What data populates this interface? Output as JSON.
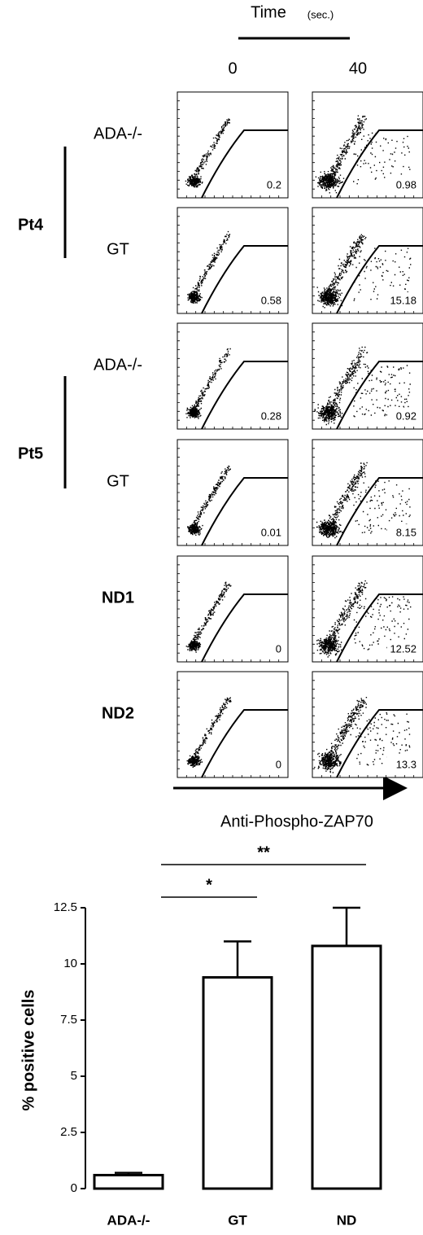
{
  "flow": {
    "time_label": "Time",
    "time_unit": "(sec.)",
    "timepoints": [
      "0",
      "40"
    ],
    "groups": [
      {
        "label": "Pt4"
      },
      {
        "label": "Pt5"
      }
    ],
    "rows": [
      {
        "label": "ADA-/-",
        "values": [
          0.2,
          0.98
        ]
      },
      {
        "label": "GT",
        "values": [
          0.58,
          15.18
        ]
      },
      {
        "label": "ADA-/-",
        "values": [
          0.28,
          0.92
        ]
      },
      {
        "label": "GT",
        "values": [
          0.01,
          8.15
        ]
      },
      {
        "label": "ND1",
        "values": [
          0,
          12.52
        ]
      },
      {
        "label": "ND2",
        "values": [
          0,
          13.3
        ]
      }
    ],
    "x_axis_label": "Anti-Phospho-ZAP70"
  },
  "chart_data": {
    "type": "bar",
    "y_label": "% positive cells",
    "categories": [
      "ADA-/-",
      "GT",
      "ND"
    ],
    "values": [
      0.6,
      9.4,
      10.8
    ],
    "errors": [
      0.1,
      1.6,
      1.7
    ],
    "color": "#ffffff",
    "ylim": [
      0,
      12.5
    ],
    "yticks": [
      0,
      2.5,
      5,
      7.5,
      10,
      12.5
    ],
    "annotations": [
      {
        "text": "*",
        "from": 0,
        "to": 1
      },
      {
        "text": "**",
        "from": 0,
        "to": 2
      }
    ]
  }
}
